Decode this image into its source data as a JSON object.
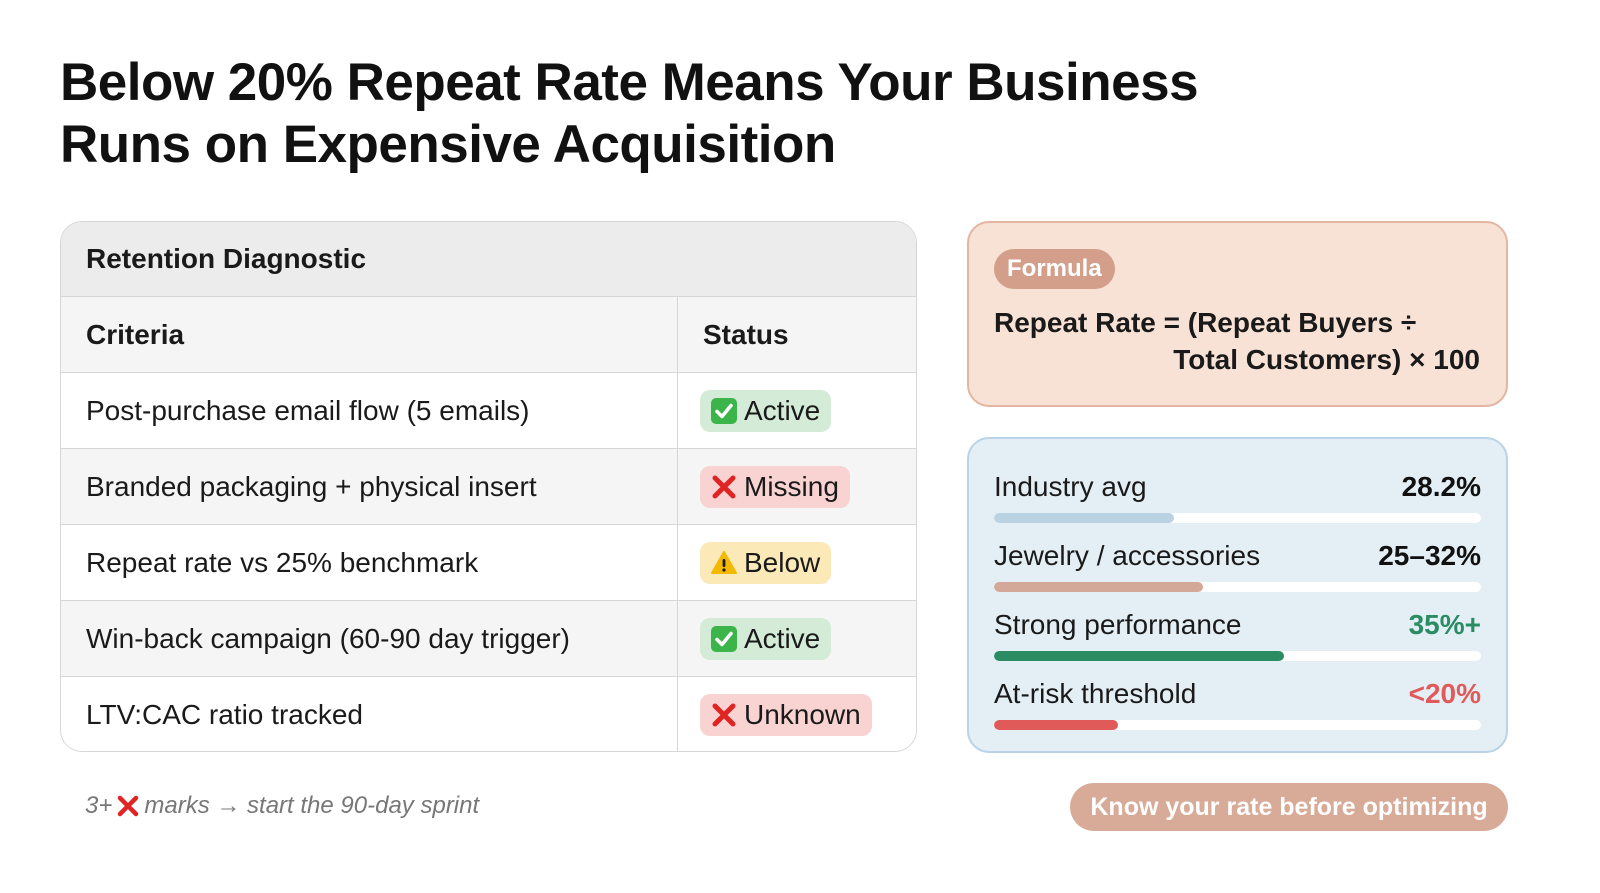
{
  "title_line1": "Below 20% Repeat Rate Means Your Business",
  "title_line2": "Runs on Expensive Acquisition",
  "diagnostic": {
    "title": "Retention Diagnostic",
    "col_criteria": "Criteria",
    "col_status": "Status",
    "rows": [
      {
        "criteria": "Post-purchase email flow (5 emails)",
        "status": "Active",
        "kind": "active",
        "icon": "check-box-icon"
      },
      {
        "criteria": "Branded packaging + physical insert",
        "status": "Missing",
        "kind": "missing",
        "icon": "red-x-icon"
      },
      {
        "criteria": "Repeat rate vs 25% benchmark",
        "status": "Below",
        "kind": "below",
        "icon": "warning-icon"
      },
      {
        "criteria": "Win-back campaign (60-90 day trigger)",
        "status": "Active",
        "kind": "active",
        "icon": "check-box-icon"
      },
      {
        "criteria": "LTV:CAC ratio tracked",
        "status": "Unknown",
        "kind": "missing",
        "icon": "red-x-icon"
      }
    ]
  },
  "formula": {
    "chip": "Formula",
    "line1": "Repeat Rate = (Repeat Buyers ÷",
    "line2": "Total Customers) × 100"
  },
  "benchmarks": [
    {
      "label": "Industry avg",
      "value": "28.2%",
      "fill_fraction": 0.37,
      "fill_color": "#b9d3e3",
      "value_color": "#111111"
    },
    {
      "label": "Jewelry / accessories",
      "value": "25–32%",
      "fill_fraction": 0.43,
      "fill_color": "#d3a898",
      "value_color": "#111111"
    },
    {
      "label": "Strong performance",
      "value": "35%+",
      "fill_fraction": 0.595,
      "fill_color": "#2a8c63",
      "value_color": "#2a8c63"
    },
    {
      "label": "At-risk threshold",
      "value": "<20%",
      "fill_fraction": 0.255,
      "fill_color": "#e05a5a",
      "value_color": "#e05a5a"
    }
  ],
  "footnote": {
    "prefix": "3+",
    "icon": "red-x-icon",
    "suffix": "marks → start the 90-day sprint"
  },
  "cta_label": "Know your rate before optimizing",
  "colors": {
    "active_badge": "#d4ecd7",
    "missing_badge": "#f9d2d2",
    "below_badge": "#fbe9b8",
    "formula_bg": "#f8e2d6",
    "bench_bg": "#e3eef5",
    "cta_bg": "#d8ab98"
  }
}
